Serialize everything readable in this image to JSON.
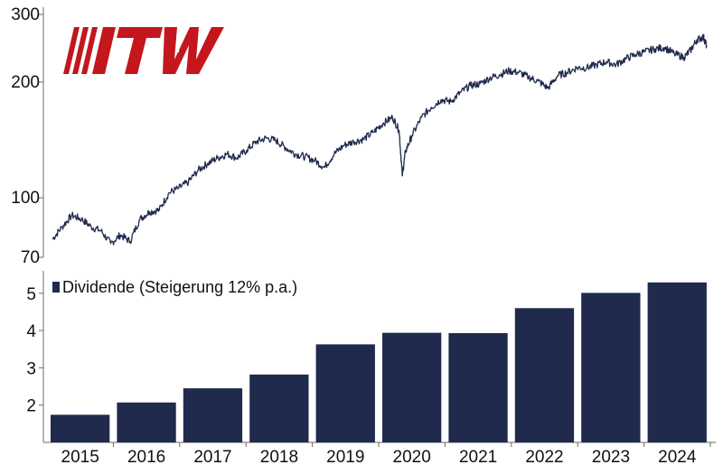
{
  "logo": {
    "text": "ITW",
    "color": "#c4161c"
  },
  "colors": {
    "series": "#1f2a4d",
    "axis": "#6b6b6b",
    "bar": "#1f2a4d"
  },
  "chart_data": [
    {
      "type": "line",
      "scale": "log",
      "ylim": [
        70,
        300
      ],
      "yticks": [
        70,
        100,
        200,
        300
      ],
      "ytick_labels": [
        "70",
        "100",
        "200",
        "300"
      ],
      "x_start": 2014.8,
      "x_end": 2024.9,
      "series": [
        {
          "x": [
            2014.8,
            2014.95,
            2015.1,
            2015.25,
            2015.4,
            2015.55,
            2015.7,
            2015.85,
            2016.0,
            2016.15,
            2016.3,
            2016.45,
            2016.6,
            2016.75,
            2016.9,
            2017.05,
            2017.2,
            2017.35,
            2017.5,
            2017.65,
            2017.8,
            2017.95,
            2018.1,
            2018.25,
            2018.4,
            2018.55,
            2018.7,
            2018.85,
            2019.0,
            2019.15,
            2019.3,
            2019.45,
            2019.6,
            2019.75,
            2019.9,
            2020.05,
            2020.15,
            2020.2,
            2020.25,
            2020.35,
            2020.5,
            2020.65,
            2020.8,
            2020.95,
            2021.1,
            2021.25,
            2021.4,
            2021.55,
            2021.7,
            2021.85,
            2022.0,
            2022.15,
            2022.3,
            2022.45,
            2022.6,
            2022.75,
            2022.9,
            2023.05,
            2023.2,
            2023.35,
            2023.5,
            2023.65,
            2023.8,
            2023.95,
            2024.1,
            2024.25,
            2024.4,
            2024.55,
            2024.65,
            2024.75,
            2024.85,
            2024.9
          ],
          "y": [
            78,
            84,
            90,
            88,
            84,
            82,
            76,
            80,
            77,
            88,
            92,
            93,
            103,
            106,
            110,
            118,
            123,
            127,
            130,
            127,
            133,
            140,
            143,
            141,
            135,
            130,
            128,
            125,
            120,
            130,
            137,
            140,
            142,
            148,
            156,
            162,
            150,
            114,
            132,
            145,
            162,
            172,
            180,
            178,
            188,
            196,
            198,
            205,
            209,
            214,
            212,
            206,
            201,
            193,
            208,
            212,
            218,
            218,
            222,
            226,
            222,
            230,
            236,
            240,
            244,
            246,
            237,
            232,
            242,
            258,
            262,
            248
          ]
        }
      ]
    },
    {
      "type": "bar",
      "categories": [
        "2015",
        "2016",
        "2017",
        "2018",
        "2019",
        "2020",
        "2021",
        "2022",
        "2023",
        "2024"
      ],
      "values": [
        1.74,
        2.07,
        2.45,
        2.82,
        3.63,
        3.94,
        3.93,
        4.6,
        5.01,
        5.29
      ],
      "ylim": [
        1,
        5.6
      ],
      "yticks": [
        2,
        3,
        4,
        5
      ],
      "ytick_labels": [
        "2",
        "3",
        "4",
        "5"
      ],
      "legend": "Dividende (Steigerung 12% p.a.)"
    }
  ]
}
